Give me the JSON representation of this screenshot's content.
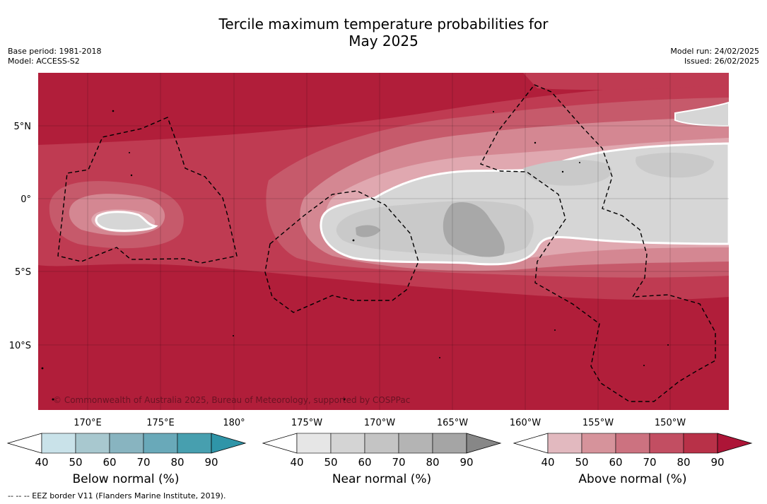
{
  "title_line1": "Tercile maximum temperature probabilities for",
  "title_line2": "May 2025",
  "base_period": "Base period: 1981-2018",
  "model": "Model: ACCESS-S2",
  "model_run": "Model run: 24/02/2025",
  "issued": "Issued: 26/02/2025",
  "copyright": "© Commonwealth of Australia 2025, Bureau of Meteorology, supported by COSPPac",
  "footnote": "--  --  -- EEZ border V11 (Flanders Marine Institute, 2019).",
  "map": {
    "lat_labels": [
      "5°N",
      "0°",
      "5°S",
      "10°S"
    ],
    "lon_labels": [
      "170°E",
      "175°E",
      "180°",
      "175°W",
      "170°W",
      "165°W",
      "160°W",
      "155°W",
      "150°W"
    ]
  },
  "colorbars": [
    {
      "id": "below",
      "title": "Below normal (%)",
      "ticks": [
        "40",
        "50",
        "60",
        "70",
        "80",
        "90"
      ],
      "colors": [
        "#ffffff",
        "#c9e2e9",
        "#a8c8cf",
        "#88b4c0",
        "#69a9b9",
        "#479faf",
        "#2f95a8"
      ]
    },
    {
      "id": "near",
      "title": "Near normal (%)",
      "ticks": [
        "40",
        "50",
        "60",
        "70",
        "80",
        "90"
      ],
      "colors": [
        "#ffffff",
        "#e6e6e6",
        "#d4d4d4",
        "#c4c4c4",
        "#b4b4b4",
        "#a5a5a5",
        "#878787"
      ]
    },
    {
      "id": "above",
      "title": "Above normal (%)",
      "ticks": [
        "40",
        "50",
        "60",
        "70",
        "80",
        "90"
      ],
      "colors": [
        "#ffffff",
        "#e2b9bf",
        "#d6939b",
        "#cc7280",
        "#c24e62",
        "#b83148",
        "#ad1537"
      ]
    }
  ],
  "region_colors": {
    "above_90": "#b11e3a",
    "above_80": "#bf3b52",
    "above_70": "#c65a6b",
    "above_60": "#d48792",
    "above_50": "#e0a8b0",
    "near_40": "#d6d6d6",
    "near_50": "#c9c9c9",
    "near_60": "#a8a8a8"
  }
}
